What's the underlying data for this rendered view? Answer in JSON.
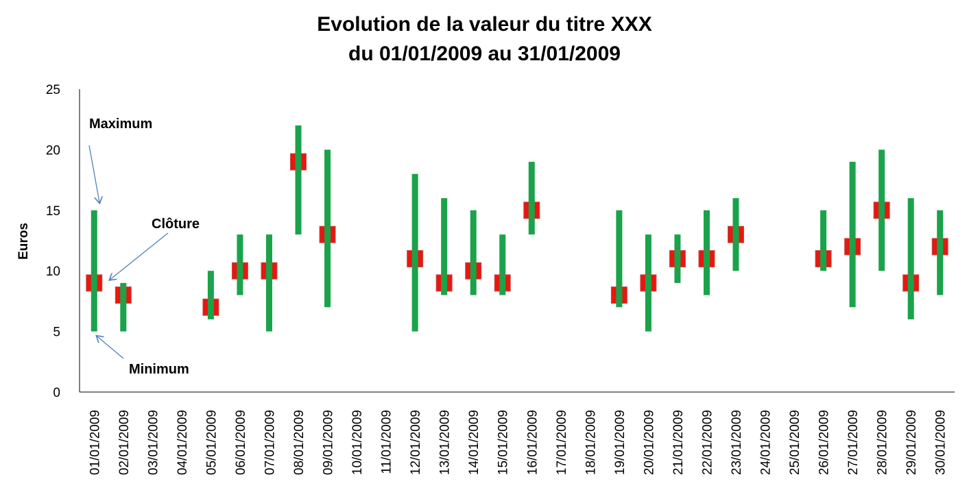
{
  "chart_data": {
    "type": "stock-high-low-close",
    "title": "Evolution de la valeur du titre XXX",
    "subtitle": "du 01/01/2009 au 31/01/2009",
    "ylabel": "Euros",
    "xlabel": "",
    "ylim": [
      0,
      25
    ],
    "yticks": [
      "0",
      "5",
      "10",
      "15",
      "20",
      "25"
    ],
    "grid": false,
    "legend": "none",
    "colors": {
      "range_bar": "#1aa34a",
      "close_marker": "#e8170f",
      "close_marker_edge": "#c0504d",
      "annotation_arrow": "#4f81bd",
      "axis": "#000000"
    },
    "categories": [
      "01/01/2009",
      "02/01/2009",
      "03/01/2009",
      "04/01/2009",
      "05/01/2009",
      "06/01/2009",
      "07/01/2009",
      "08/01/2009",
      "09/01/2009",
      "10/01/2009",
      "11/01/2009",
      "12/01/2009",
      "13/01/2009",
      "14/01/2009",
      "15/01/2009",
      "16/01/2009",
      "17/01/2009",
      "18/01/2009",
      "19/01/2009",
      "20/01/2009",
      "21/01/2009",
      "22/01/2009",
      "23/01/2009",
      "24/01/2009",
      "25/01/2009",
      "26/01/2009",
      "27/01/2009",
      "28/01/2009",
      "29/01/2009",
      "30/01/2009"
    ],
    "high": [
      15,
      9,
      null,
      null,
      10,
      13,
      13,
      22,
      20,
      null,
      null,
      18,
      16,
      15,
      13,
      19,
      null,
      null,
      15,
      13,
      13,
      15,
      16,
      null,
      null,
      15,
      19,
      20,
      16,
      15
    ],
    "low": [
      5,
      5,
      null,
      null,
      6,
      8,
      5,
      13,
      7,
      null,
      null,
      5,
      8,
      8,
      8,
      13,
      null,
      null,
      7,
      5,
      9,
      8,
      10,
      null,
      null,
      10,
      7,
      10,
      6,
      8
    ],
    "close": [
      9,
      8,
      null,
      null,
      7,
      10,
      10,
      19,
      13,
      null,
      null,
      11,
      9,
      10,
      9,
      15,
      null,
      null,
      8,
      9,
      11,
      11,
      13,
      null,
      null,
      11,
      12,
      15,
      9,
      12
    ],
    "annotations": [
      {
        "text": "Maximum",
        "value": 15
      },
      {
        "text": "Clôture",
        "value": 9
      },
      {
        "text": "Minimum",
        "value": 5
      }
    ]
  }
}
